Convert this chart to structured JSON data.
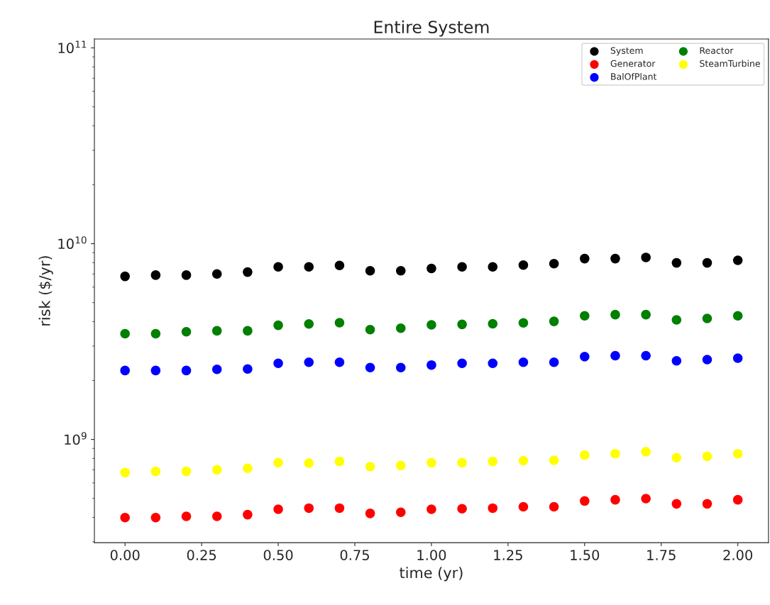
{
  "chart_data": {
    "type": "scatter",
    "title": "Entire System",
    "xlabel": "time (yr)",
    "ylabel": "risk ($/yr)",
    "x": [
      0.0,
      0.1,
      0.2,
      0.3,
      0.4,
      0.5,
      0.6,
      0.7,
      0.8,
      0.9,
      1.0,
      1.1,
      1.2,
      1.3,
      1.4,
      1.5,
      1.6,
      1.7,
      1.8,
      1.9,
      2.0
    ],
    "series": [
      {
        "name": "System",
        "color": "#000000",
        "values": [
          6810000000.0,
          6910000000.0,
          6910000000.0,
          7000000000.0,
          7160000000.0,
          7610000000.0,
          7610000000.0,
          7740000000.0,
          7270000000.0,
          7270000000.0,
          7470000000.0,
          7610000000.0,
          7610000000.0,
          7770000000.0,
          7900000000.0,
          8390000000.0,
          8390000000.0,
          8510000000.0,
          7980000000.0,
          7980000000.0,
          8230000000.0
        ]
      },
      {
        "name": "Generator",
        "color": "#ff0000",
        "values": [
          399000000.0,
          399000000.0,
          405000000.0,
          405000000.0,
          413000000.0,
          440000000.0,
          446000000.0,
          446000000.0,
          419000000.0,
          425000000.0,
          440000000.0,
          443000000.0,
          446000000.0,
          453000000.0,
          453000000.0,
          485000000.0,
          492000000.0,
          499000000.0,
          469000000.0,
          469000000.0,
          492000000.0
        ]
      },
      {
        "name": "BalOfPlant",
        "color": "#0000ff",
        "values": [
          2250000000.0,
          2250000000.0,
          2250000000.0,
          2280000000.0,
          2290000000.0,
          2450000000.0,
          2480000000.0,
          2480000000.0,
          2330000000.0,
          2330000000.0,
          2400000000.0,
          2450000000.0,
          2450000000.0,
          2480000000.0,
          2480000000.0,
          2650000000.0,
          2680000000.0,
          2680000000.0,
          2520000000.0,
          2560000000.0,
          2600000000.0
        ]
      },
      {
        "name": "Reactor",
        "color": "#008000",
        "values": [
          3470000000.0,
          3470000000.0,
          3550000000.0,
          3590000000.0,
          3590000000.0,
          3830000000.0,
          3890000000.0,
          3950000000.0,
          3640000000.0,
          3700000000.0,
          3850000000.0,
          3870000000.0,
          3900000000.0,
          3940000000.0,
          4010000000.0,
          4280000000.0,
          4340000000.0,
          4340000000.0,
          4080000000.0,
          4150000000.0,
          4280000000.0
        ]
      },
      {
        "name": "SteamTurbine",
        "color": "#ffff00",
        "values": [
          677000000.0,
          687000000.0,
          687000000.0,
          700000000.0,
          712000000.0,
          761000000.0,
          757000000.0,
          772000000.0,
          726000000.0,
          736000000.0,
          761000000.0,
          761000000.0,
          772000000.0,
          779000000.0,
          783000000.0,
          832000000.0,
          846000000.0,
          866000000.0,
          807000000.0,
          819000000.0,
          846000000.0
        ]
      }
    ],
    "log": "y",
    "xlim": [
      -0.1,
      2.1
    ],
    "ylim": [
      297000000.0,
      111000000000.0
    ],
    "xticks": [
      {
        "value": 0,
        "label": "0.00"
      },
      {
        "value": 0.25,
        "label": "0.25"
      },
      {
        "value": 0.5,
        "label": "0.50"
      },
      {
        "value": 0.75,
        "label": "0.75"
      },
      {
        "value": 1,
        "label": "1.00"
      },
      {
        "value": 1.25,
        "label": "1.25"
      },
      {
        "value": 1.5,
        "label": "1.50"
      },
      {
        "value": 1.75,
        "label": "1.75"
      },
      {
        "value": 2,
        "label": "2.00"
      }
    ],
    "yticks": [
      {
        "value": 1000000000.0,
        "label": "10$^{9}$"
      },
      {
        "value": 10000000000.0,
        "label": "10$^{10}$"
      },
      {
        "value": 100000000000.0,
        "label": "10$^{11}$"
      }
    ],
    "marker": "circle",
    "grid": false,
    "legend": "top right"
  }
}
